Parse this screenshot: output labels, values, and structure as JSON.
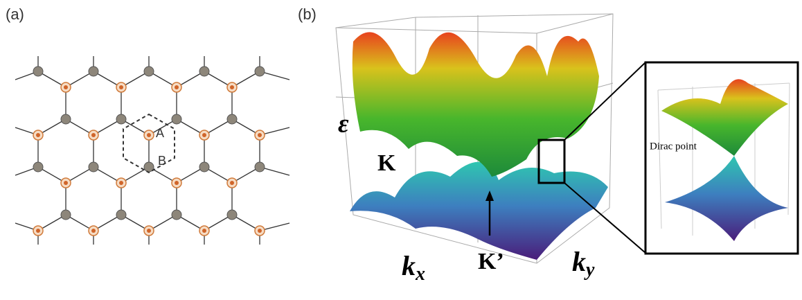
{
  "panel_a": {
    "label": "(a)",
    "sublattice_labels": [
      "A",
      "B"
    ]
  },
  "panel_b": {
    "label": "(b)",
    "energy_label": "ε",
    "point_labels": [
      "K",
      "K’"
    ],
    "axis_labels": [
      {
        "base": "k",
        "sub": "x"
      },
      {
        "base": "k",
        "sub": "y"
      }
    ],
    "inset_label": "Dirac point"
  }
}
